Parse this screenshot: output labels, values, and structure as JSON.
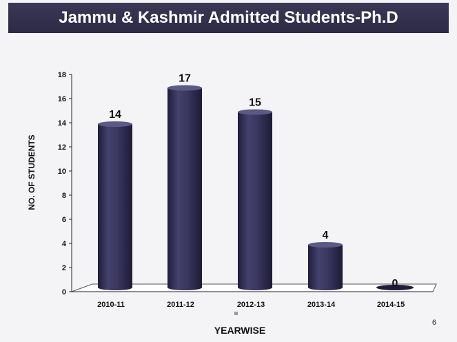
{
  "page_number": "6",
  "colors": {
    "title_bg": "#312f4c",
    "bar": "#33315a",
    "bar_dark": "#1f1d3a",
    "bar_light": "#5b5985",
    "text": "#111111"
  },
  "chart_data": {
    "type": "bar",
    "title": "Jammu & Kashmir Admitted Students-Ph.D",
    "xlabel": "YEARWISE",
    "ylabel": "NO. OF STUDENTS",
    "categories": [
      "2010-11",
      "2011-12",
      "2012-13",
      "2013-14",
      "2014-15"
    ],
    "values": [
      14,
      17,
      15,
      4,
      0
    ],
    "ylim": [
      0,
      18
    ],
    "yticks": [
      0,
      2,
      4,
      6,
      8,
      10,
      12,
      14,
      16,
      18
    ],
    "data_labels": [
      "14",
      "17",
      "15",
      "4",
      "0"
    ],
    "grid": false,
    "legend": "bottom-center"
  }
}
